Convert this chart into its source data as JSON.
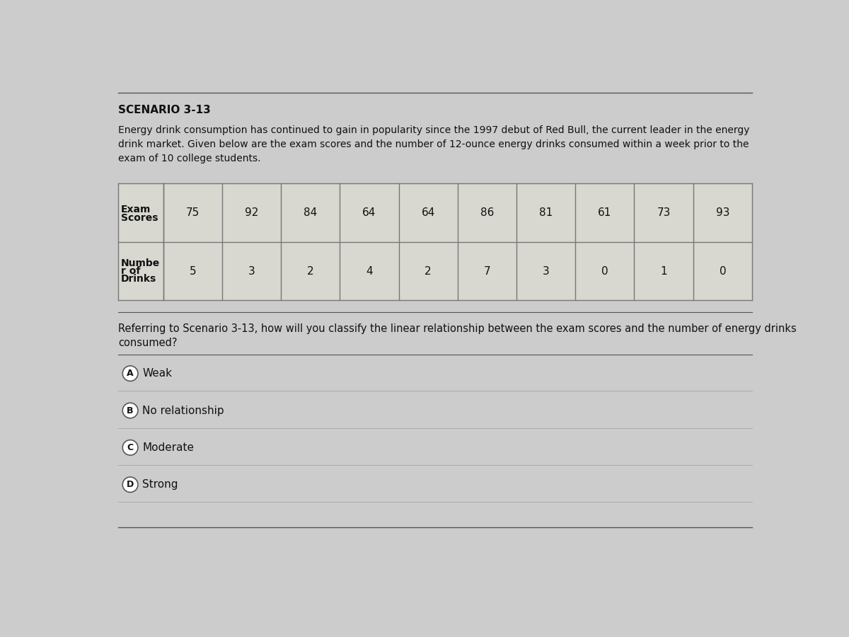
{
  "title": "SCENARIO 3-13",
  "scenario_line1": "Energy drink consumption has continued to gain in popularity since the 1997 debut of Red Bull, the current leader in the energy",
  "scenario_line2": "drink market. Given below are the exam scores and the number of 12-ounce energy drinks consumed within a week prior to the",
  "scenario_line3": "exam of 10 college students.",
  "exam_scores": [
    75,
    92,
    84,
    64,
    64,
    86,
    81,
    61,
    73,
    93
  ],
  "drinks": [
    5,
    3,
    2,
    4,
    2,
    7,
    3,
    0,
    1,
    0
  ],
  "row1_label_line1": "Exam",
  "row1_label_line2": "Scores",
  "row2_label_line1": "Numbe",
  "row2_label_line2": "r of",
  "row2_label_line3": "Drinks",
  "question_line1": "Referring to Scenario 3-13, how will you classify the linear relationship between the exam scores and the number of energy drinks",
  "question_line2": "consumed?",
  "options": [
    {
      "letter": "A",
      "text": "Weak"
    },
    {
      "letter": "B",
      "text": "No relationship"
    },
    {
      "letter": "C",
      "text": "Moderate"
    },
    {
      "letter": "D",
      "text": "Strong"
    }
  ],
  "bg_color": "#cccccc",
  "table_bg": "#d8d8d0",
  "text_color": "#111111",
  "border_color": "#777777",
  "top_line_color": "#555555",
  "font_size_title": 11,
  "font_size_body": 10,
  "font_size_table_label": 10,
  "font_size_table_data": 11,
  "font_size_option": 11,
  "font_size_question": 10.5
}
